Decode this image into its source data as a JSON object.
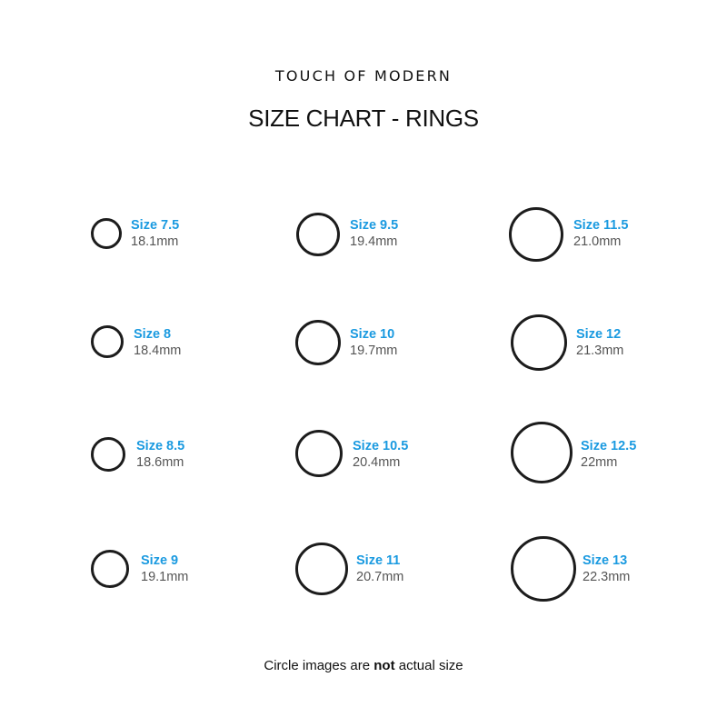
{
  "brand": "TOUCH OF MODERN",
  "title": "SIZE CHART - RINGS",
  "accent_color": "#1a9ae0",
  "sizes": [
    {
      "size": "Size 7.5",
      "mm": "18.1mm"
    },
    {
      "size": "Size 8",
      "mm": "18.4mm"
    },
    {
      "size": "Size 8.5",
      "mm": "18.6mm"
    },
    {
      "size": "Size 9",
      "mm": "19.1mm"
    },
    {
      "size": "Size 9.5",
      "mm": "19.4mm"
    },
    {
      "size": "Size 10",
      "mm": "19.7mm"
    },
    {
      "size": "Size 10.5",
      "mm": "20.4mm"
    },
    {
      "size": "Size 11",
      "mm": "20.7mm"
    },
    {
      "size": "Size 11.5",
      "mm": "21.0mm"
    },
    {
      "size": "Size 12",
      "mm": "21.3mm"
    },
    {
      "size": "Size 12.5",
      "mm": "22mm"
    },
    {
      "size": "Size 13",
      "mm": "22.3mm"
    }
  ],
  "note": {
    "before": "Circle images are ",
    "bold": "not",
    "after": " actual size"
  }
}
